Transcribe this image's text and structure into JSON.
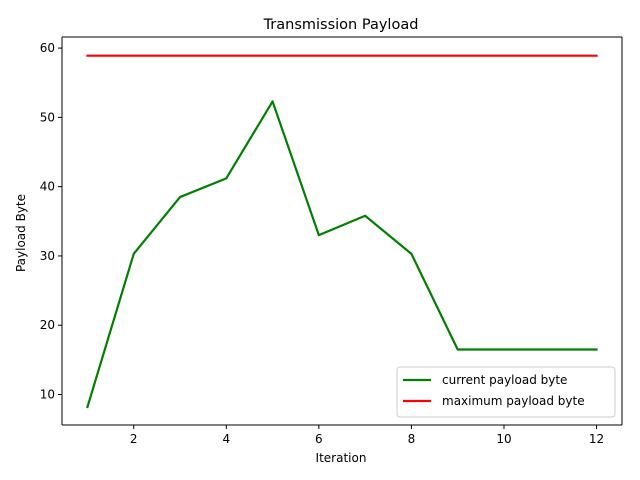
{
  "chart_data": {
    "type": "line",
    "title": "Transmission Payload",
    "xlabel": "Iteration",
    "ylabel": "Payload Byte",
    "x": [
      1,
      2,
      3,
      4,
      5,
      6,
      7,
      8,
      9,
      10,
      11,
      12
    ],
    "xlim": [
      0.45,
      12.55
    ],
    "ylim": [
      5.6,
      61.6
    ],
    "xticks": [
      2,
      4,
      6,
      8,
      10,
      12
    ],
    "yticks": [
      10,
      20,
      30,
      40,
      50,
      60
    ],
    "grid": false,
    "legend_position": "lower right",
    "series": [
      {
        "name": "current payload byte",
        "color": "#008000",
        "values": [
          8.2,
          30.3,
          38.5,
          41.2,
          52.3,
          33.0,
          35.8,
          30.3,
          16.5,
          16.5,
          16.5,
          16.5
        ]
      },
      {
        "name": "maximum payload byte",
        "color": "#ff0000",
        "values": [
          58.9,
          58.9,
          58.9,
          58.9,
          58.9,
          58.9,
          58.9,
          58.9,
          58.9,
          58.9,
          58.9,
          58.9
        ]
      }
    ]
  }
}
